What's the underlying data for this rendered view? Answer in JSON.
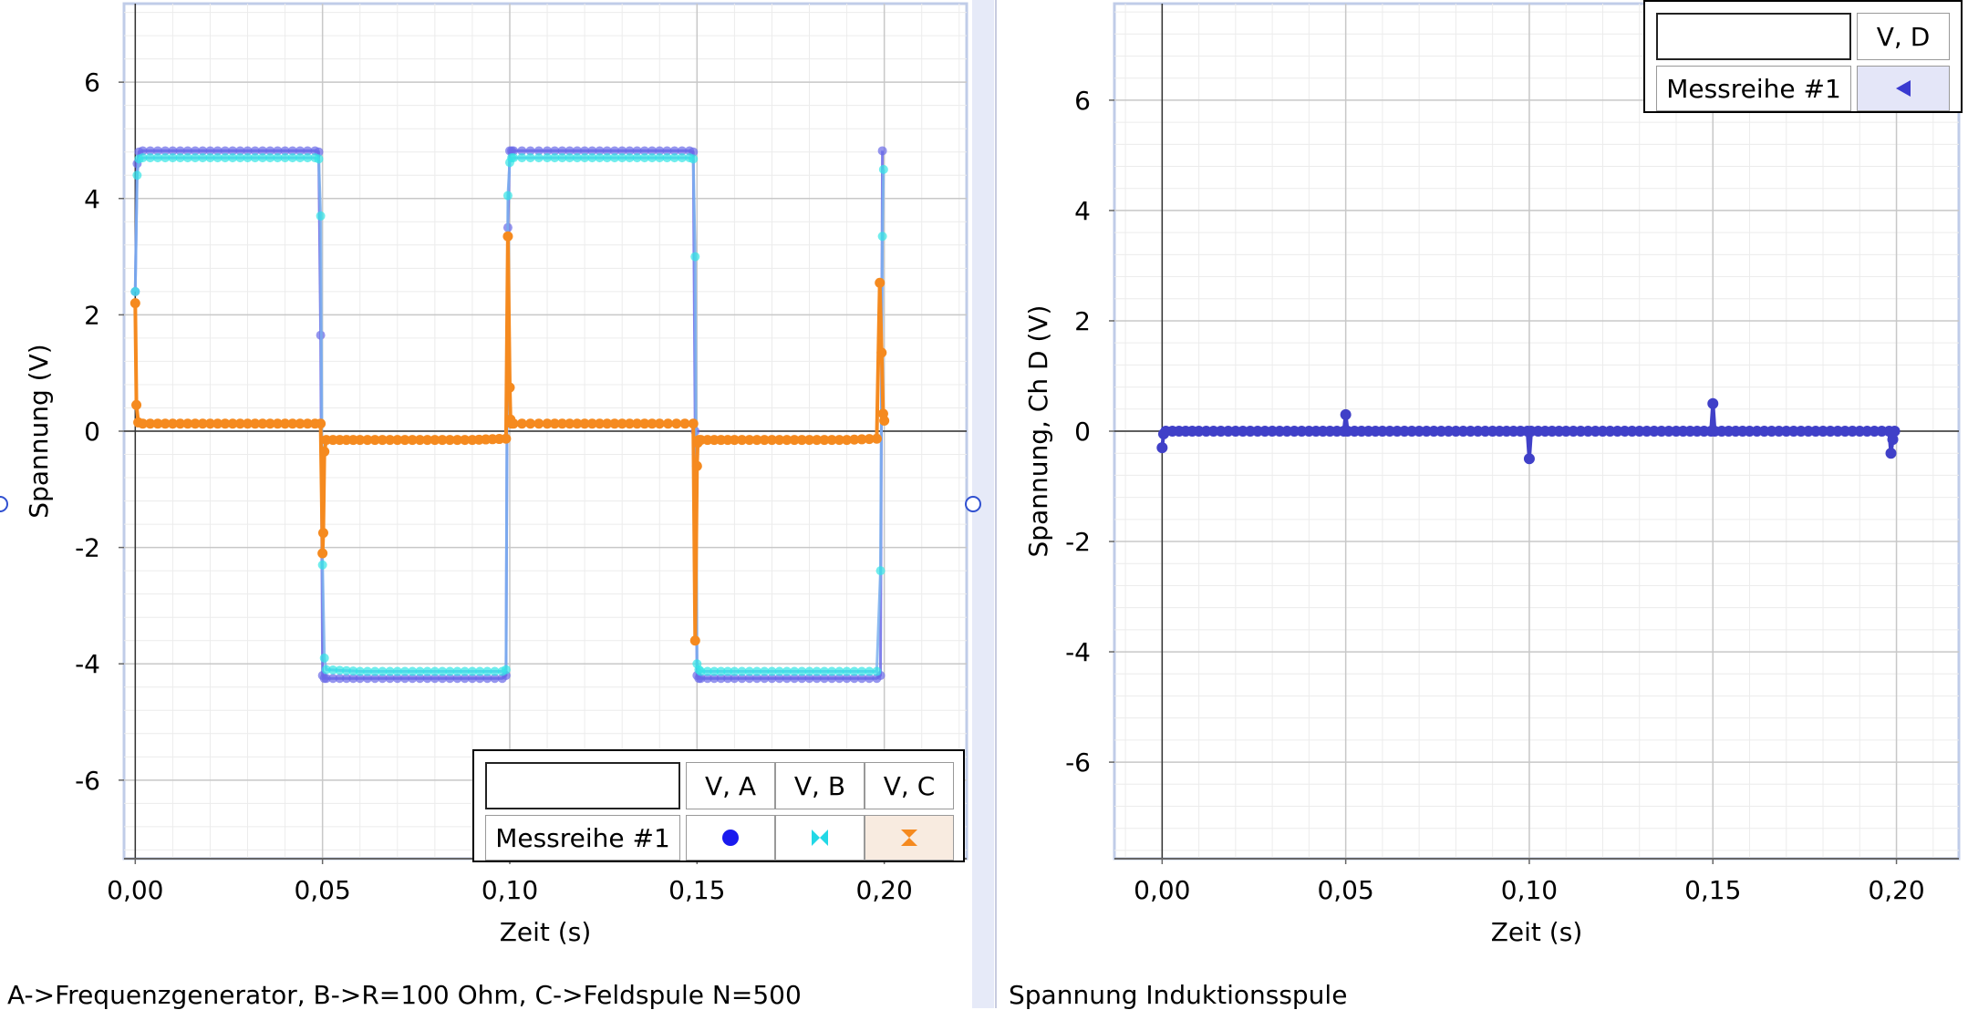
{
  "captions": {
    "left": "A->Frequenzgenerator, B->R=100 Ohm, C->Feldspule N=500",
    "right": "Spannung Induktionsspule"
  },
  "legend_left": {
    "input_value": "",
    "row_label": "Messreihe #1",
    "headers": [
      "V, A",
      "V, B",
      "V, C"
    ],
    "symbols": [
      "circle-symbol",
      "bowtie-symbol",
      "hourglass-symbol"
    ]
  },
  "legend_right": {
    "input_value": "",
    "row_label": "Messreihe #1",
    "headers": [
      "V, D"
    ],
    "symbols": [
      "triangle-left-symbol"
    ]
  },
  "colors": {
    "A": "#6a6ae8",
    "B": "#33e6e6",
    "C": "#f58a1f",
    "D": "#4040c8",
    "line": "#7ab0ee",
    "grid_major": "#c8c8c8",
    "grid_minor": "#ececec"
  },
  "chart_data": [
    {
      "type": "line",
      "xlabel": "Zeit (s)",
      "ylabel": "Spannung (V)",
      "xlim": [
        -0.003,
        0.222
      ],
      "ylim": [
        -7.35,
        7.35
      ],
      "xticks": [
        0.0,
        0.05,
        0.1,
        0.15,
        0.2
      ],
      "xtick_labels": [
        "0,00",
        "0,05",
        "0,10",
        "0,15",
        "0,20"
      ],
      "yticks": [
        -6,
        -4,
        -2,
        0,
        2,
        4,
        6
      ],
      "ytick_labels": [
        "-6",
        "-4",
        "-2",
        "0",
        "2",
        "4",
        "6"
      ],
      "grid": true,
      "legend": "bottom-right",
      "series": [
        {
          "name": "V, A",
          "x": [
            0.0,
            0.0005,
            0.001,
            0.002,
            0.01,
            0.02,
            0.03,
            0.04,
            0.048,
            0.049,
            0.0495,
            0.05,
            0.0505,
            0.051,
            0.06,
            0.07,
            0.08,
            0.09,
            0.098,
            0.099,
            0.0995,
            0.1,
            0.1005,
            0.101,
            0.11,
            0.12,
            0.13,
            0.14,
            0.148,
            0.149,
            0.1495,
            0.15,
            0.1505,
            0.151,
            0.16,
            0.17,
            0.18,
            0.19,
            0.198,
            0.199,
            0.1995
          ],
          "y": [
            2.4,
            4.6,
            4.8,
            4.82,
            4.82,
            4.82,
            4.82,
            4.82,
            4.82,
            4.8,
            1.65,
            -4.2,
            -4.25,
            -4.25,
            -4.25,
            -4.25,
            -4.25,
            -4.25,
            -4.25,
            -4.2,
            3.5,
            4.82,
            4.82,
            4.82,
            4.82,
            4.82,
            4.82,
            4.82,
            4.82,
            4.8,
            0.0,
            -4.2,
            -4.25,
            -4.25,
            -4.25,
            -4.25,
            -4.25,
            -4.25,
            -4.25,
            -4.2,
            4.82
          ]
        },
        {
          "name": "V, B",
          "x": [
            0.0,
            0.0005,
            0.001,
            0.002,
            0.01,
            0.02,
            0.03,
            0.04,
            0.048,
            0.049,
            0.0495,
            0.05,
            0.0505,
            0.051,
            0.06,
            0.07,
            0.08,
            0.09,
            0.098,
            0.099,
            0.0995,
            0.1,
            0.1005,
            0.101,
            0.11,
            0.12,
            0.13,
            0.14,
            0.148,
            0.149,
            0.1495,
            0.15,
            0.1505,
            0.151,
            0.16,
            0.17,
            0.18,
            0.19,
            0.198,
            0.199,
            0.1995,
            0.1998
          ],
          "y": [
            2.4,
            4.4,
            4.68,
            4.7,
            4.7,
            4.7,
            4.7,
            4.7,
            4.7,
            4.68,
            3.7,
            -2.3,
            -3.9,
            -4.1,
            -4.13,
            -4.13,
            -4.13,
            -4.13,
            -4.13,
            -4.1,
            4.05,
            4.62,
            4.7,
            4.7,
            4.7,
            4.7,
            4.7,
            4.7,
            4.7,
            4.68,
            3.0,
            -4.0,
            -4.1,
            -4.13,
            -4.13,
            -4.13,
            -4.13,
            -4.13,
            -4.13,
            -2.4,
            3.35,
            4.5
          ]
        },
        {
          "name": "V, C",
          "x": [
            0.0,
            0.0003,
            0.0008,
            0.002,
            0.01,
            0.02,
            0.03,
            0.04,
            0.048,
            0.0495,
            0.05,
            0.0502,
            0.0505,
            0.051,
            0.06,
            0.07,
            0.08,
            0.09,
            0.099,
            0.0995,
            0.1,
            0.1002,
            0.1005,
            0.101,
            0.11,
            0.12,
            0.13,
            0.14,
            0.149,
            0.1495,
            0.15,
            0.1502,
            0.1505,
            0.151,
            0.16,
            0.17,
            0.18,
            0.19,
            0.198,
            0.1988,
            0.1993,
            0.1997,
            0.2
          ],
          "y": [
            2.2,
            0.45,
            0.15,
            0.13,
            0.13,
            0.13,
            0.13,
            0.13,
            0.13,
            0.13,
            -2.1,
            -1.75,
            -0.35,
            -0.15,
            -0.15,
            -0.15,
            -0.15,
            -0.15,
            -0.13,
            3.35,
            0.75,
            0.2,
            0.13,
            0.13,
            0.13,
            0.13,
            0.13,
            0.13,
            0.13,
            -3.6,
            -0.6,
            -0.2,
            -0.15,
            -0.15,
            -0.15,
            -0.15,
            -0.15,
            -0.15,
            -0.13,
            2.55,
            1.35,
            0.3,
            0.18
          ]
        }
      ]
    },
    {
      "type": "line",
      "xlabel": "Zeit (s)",
      "ylabel": "Spannung, Ch D (V)",
      "xlim": [
        -0.013,
        0.217
      ],
      "ylim": [
        -7.75,
        7.75
      ],
      "xticks": [
        0.0,
        0.05,
        0.1,
        0.15,
        0.2
      ],
      "xtick_labels": [
        "0,00",
        "0,05",
        "0,10",
        "0,15",
        "0,20"
      ],
      "yticks": [
        -6,
        -4,
        -2,
        0,
        2,
        4,
        6
      ],
      "ytick_labels": [
        "-6",
        "-4",
        "-2",
        "0",
        "2",
        "4",
        "6"
      ],
      "grid": true,
      "legend": "top-right",
      "series": [
        {
          "name": "V, D",
          "x": [
            0.0,
            0.0004,
            0.001,
            0.01,
            0.02,
            0.03,
            0.04,
            0.0495,
            0.05,
            0.0505,
            0.06,
            0.07,
            0.08,
            0.09,
            0.0995,
            0.1,
            0.1005,
            0.11,
            0.12,
            0.13,
            0.14,
            0.1495,
            0.15,
            0.1505,
            0.16,
            0.17,
            0.18,
            0.19,
            0.198,
            0.1985,
            0.199,
            0.1995
          ],
          "y": [
            -0.3,
            -0.05,
            0.0,
            0.0,
            0.0,
            0.0,
            0.0,
            0.0,
            0.3,
            0.0,
            0.0,
            0.0,
            0.0,
            0.0,
            0.0,
            -0.5,
            0.0,
            0.0,
            0.0,
            0.0,
            0.0,
            0.0,
            0.5,
            0.0,
            0.0,
            0.0,
            0.0,
            0.0,
            0.0,
            -0.4,
            -0.15,
            0.0
          ]
        }
      ]
    }
  ]
}
